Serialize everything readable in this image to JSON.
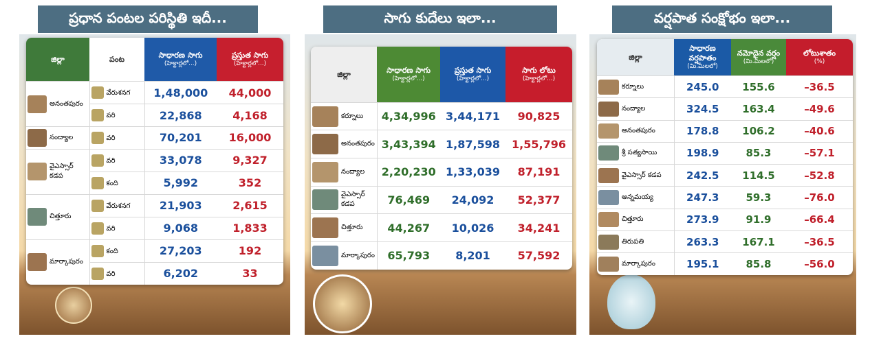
{
  "panels": [
    {
      "title": "ప్రధాన పంటల పరిస్థితి ఇదీ...",
      "headers": [
        {
          "label": "జిల్లా"
        },
        {
          "label": "పంట"
        },
        {
          "label": "సాధారణ సాగు",
          "unit": "(హెక్టార్లలో...)"
        },
        {
          "label": "ప్రస్తుత సాగు",
          "unit": "(హెక్టార్లలో...)"
        }
      ],
      "rows": [
        {
          "district": "అనంతపురం",
          "crops": [
            {
              "crop": "వేరుశనగ",
              "normal": "1,48,000",
              "current": "44,000"
            },
            {
              "crop": "వరి",
              "normal": "22,868",
              "current": "4,168"
            }
          ]
        },
        {
          "district": "నంద్యాల",
          "crops": [
            {
              "crop": "వరి",
              "normal": "70,201",
              "current": "16,000"
            }
          ]
        },
        {
          "district": "వైఎస్సార్ కడప",
          "crops": [
            {
              "crop": "వరి",
              "normal": "33,078",
              "current": "9,327"
            },
            {
              "crop": "కంది",
              "normal": "5,992",
              "current": "352"
            }
          ]
        },
        {
          "district": "చిత్తూరు",
          "crops": [
            {
              "crop": "వేరుశనగ",
              "normal": "21,903",
              "current": "2,615"
            },
            {
              "crop": "వరి",
              "normal": "9,068",
              "current": "1,833"
            }
          ]
        },
        {
          "district": "మార్కాపురం",
          "crops": [
            {
              "crop": "కంది",
              "normal": "27,203",
              "current": "192"
            },
            {
              "crop": "వరి",
              "normal": "6,202",
              "current": "33"
            }
          ]
        }
      ]
    },
    {
      "title": "సాగు కుదేలు ఇలా...",
      "headers": [
        {
          "label": "జిల్లా"
        },
        {
          "label": "సాధారణ సాగు",
          "unit": "(హెక్టార్లలో...)"
        },
        {
          "label": "ప్రస్తుత సాగు",
          "unit": "(హెక్టార్లలో...)"
        },
        {
          "label": "సాగు లోటు",
          "unit": "(హెక్టార్లలో...)"
        }
      ],
      "rows": [
        [
          "కర్నూలు",
          "4,34,996",
          "3,44,171",
          "90,825"
        ],
        [
          "అనంతపురం",
          "3,43,394",
          "1,87,598",
          "1,55,796"
        ],
        [
          "నంద్యాల",
          "2,20,230",
          "1,33,039",
          "87,191"
        ],
        [
          "వైఎస్సార్ కడప",
          "76,469",
          "24,092",
          "52,377"
        ],
        [
          "చిత్తూరు",
          "44,267",
          "10,026",
          "34,241"
        ],
        [
          "మార్కాపురం",
          "65,793",
          "8,201",
          "57,592"
        ]
      ]
    },
    {
      "title": "వర్షపాత సంక్షోభం ఇలా...",
      "headers": [
        {
          "label": "జిల్లా"
        },
        {
          "label": "సాధారణ వర్షపాతం",
          "unit": "(మి.మీలలో)"
        },
        {
          "label": "నమోదైన వర్షం",
          "unit": "(మి.మీలలో)"
        },
        {
          "label": "లోటుశాతం",
          "unit": "(%)"
        }
      ],
      "rows": [
        [
          "కర్నూలు",
          "245.0",
          "155.6",
          "–36.5"
        ],
        [
          "నంద్యాల",
          "324.5",
          "163.4",
          "–49.6"
        ],
        [
          "అనంతపురం",
          "178.8",
          "106.2",
          "–40.6"
        ],
        [
          "శ్రీ సత్యసాయి",
          "198.9",
          "85.3",
          "–57.1"
        ],
        [
          "వైఎస్సార్ కడప",
          "242.5",
          "114.5",
          "–52.8"
        ],
        [
          "అన్నమయ్య",
          "247.3",
          "59.3",
          "–76.0"
        ],
        [
          "చిత్తూరు",
          "273.9",
          "91.9",
          "–66.4"
        ],
        [
          "తిరుపతి",
          "263.3",
          "167.1",
          "–36.5"
        ],
        [
          "మార్కాపురం",
          "195.1",
          "85.8",
          "–56.0"
        ]
      ]
    }
  ]
}
